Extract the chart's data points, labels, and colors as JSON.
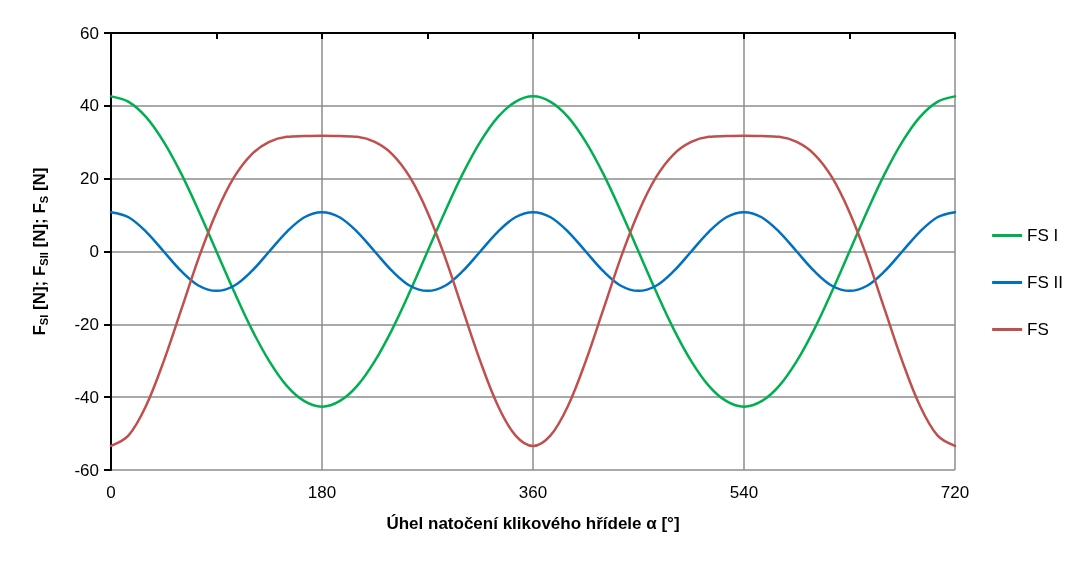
{
  "chart_data": {
    "type": "line",
    "xlabel": "Úhel natočení klikového hřídele α [°]",
    "ylabel": "F$_{SI}$ [N]; F$_{SII}$ [N]; F$_{S}$ [N]",
    "x": [
      0,
      15,
      30,
      45,
      60,
      75,
      90,
      105,
      120,
      135,
      150,
      165,
      180,
      195,
      210,
      225,
      240,
      255,
      270,
      285,
      300,
      315,
      330,
      345,
      360,
      375,
      390,
      405,
      420,
      435,
      450,
      465,
      480,
      495,
      510,
      525,
      540,
      555,
      570,
      585,
      600,
      615,
      630,
      645,
      660,
      675,
      690,
      705,
      720
    ],
    "series": [
      {
        "name": "FS I",
        "color": "#00b050",
        "values": [
          42.6,
          41.1,
          36.9,
          30.1,
          21.3,
          11.0,
          0,
          -11.0,
          -21.3,
          -30.1,
          -36.9,
          -41.1,
          -42.6,
          -41.1,
          -36.9,
          -30.1,
          -21.3,
          -11.0,
          0,
          11.0,
          21.3,
          30.1,
          36.9,
          41.1,
          42.6,
          41.1,
          36.9,
          30.1,
          21.3,
          11.0,
          0,
          -11.0,
          -21.3,
          -30.1,
          -36.9,
          -41.1,
          -42.6,
          -41.1,
          -36.9,
          -30.1,
          -21.3,
          -11.0,
          0,
          11.0,
          21.3,
          30.1,
          36.9,
          41.1,
          42.6
        ]
      },
      {
        "name": "FS II",
        "color": "#0070c0",
        "values": [
          10.8,
          9.4,
          5.4,
          0,
          -5.4,
          -9.4,
          -10.8,
          -9.4,
          -5.4,
          0,
          5.4,
          9.4,
          10.8,
          9.4,
          5.4,
          0,
          -5.4,
          -9.4,
          -10.8,
          -9.4,
          -5.4,
          0,
          5.4,
          9.4,
          10.8,
          9.4,
          5.4,
          0,
          -5.4,
          -9.4,
          -10.8,
          -9.4,
          -5.4,
          0,
          5.4,
          9.4,
          10.8,
          9.4,
          5.4,
          0,
          -5.4,
          -9.4,
          -10.8,
          -9.4,
          -5.4,
          0,
          5.4,
          9.4,
          10.8
        ]
      },
      {
        "name": "FS",
        "color": "#c0504d",
        "values": [
          -53.4,
          -50.5,
          -42.3,
          -30.1,
          -15.9,
          -1.6,
          10.8,
          20.4,
          26.7,
          30.1,
          31.5,
          31.7,
          31.8,
          31.7,
          31.5,
          30.1,
          26.7,
          20.4,
          10.8,
          -1.6,
          -15.9,
          -30.1,
          -42.3,
          -50.5,
          -53.4,
          -50.5,
          -42.3,
          -30.1,
          -15.9,
          -1.6,
          10.8,
          20.4,
          26.7,
          30.1,
          31.5,
          31.7,
          31.8,
          31.7,
          31.5,
          30.1,
          26.7,
          20.4,
          10.8,
          -1.6,
          -15.9,
          -30.1,
          -42.3,
          -50.5,
          -53.4
        ]
      }
    ],
    "xlim": [
      0,
      720
    ],
    "xticks": [
      0,
      {
        "value": 90,
        "label": null
      },
      180,
      {
        "value": 270,
        "label": null
      },
      360,
      {
        "value": 450,
        "label": null
      },
      540,
      {
        "value": 630,
        "label": null
      },
      720
    ],
    "ylim": [
      -60,
      60
    ],
    "yticks": [
      -60,
      -40,
      -20,
      0,
      20,
      40,
      60
    ],
    "grid": true,
    "legend": "right",
    "marker": "none",
    "line_style": "solid"
  }
}
